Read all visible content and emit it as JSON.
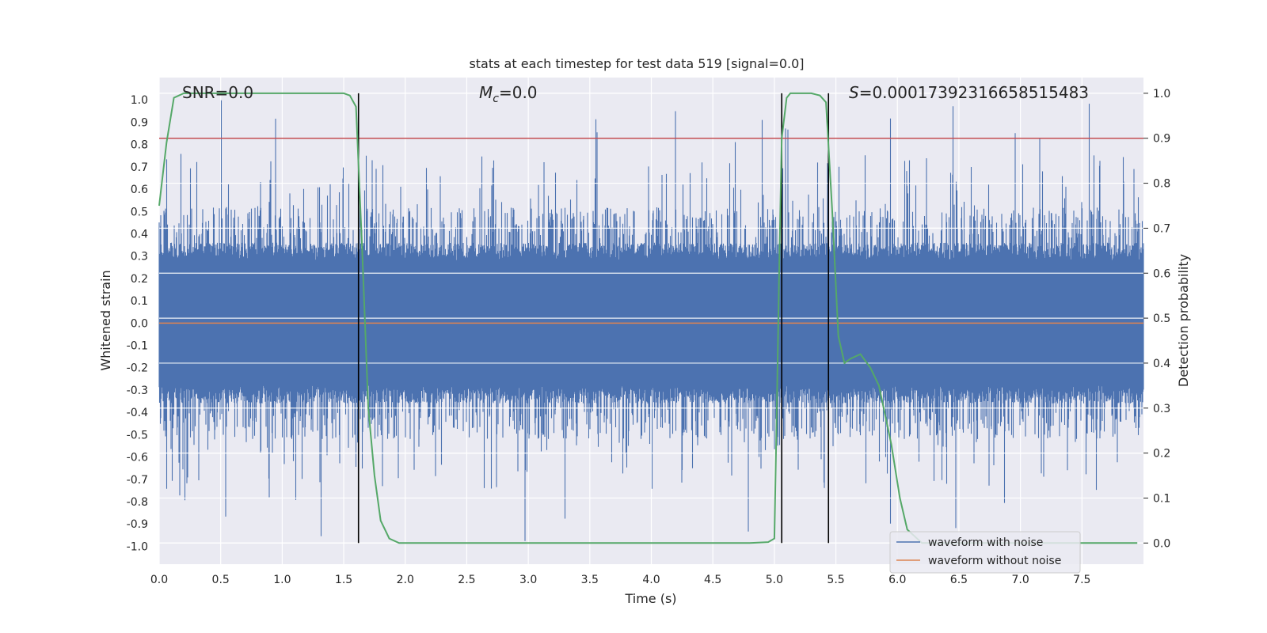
{
  "chart_data": {
    "type": "line",
    "title": "stats at each timestep for test data 519 [signal=0.0]",
    "xlabel": "Time (s)",
    "ylabel": "Whitened strain",
    "y2label": "Detection probability",
    "xlim": [
      0.0,
      8.0
    ],
    "ylim": [
      -1.08,
      1.1
    ],
    "y2lim": [
      -0.047,
      1.035
    ],
    "xticks": [
      "0.0",
      "0.5",
      "1.0",
      "1.5",
      "2.0",
      "2.5",
      "3.0",
      "3.5",
      "4.0",
      "4.5",
      "5.0",
      "5.5",
      "6.0",
      "6.5",
      "7.0",
      "7.5"
    ],
    "yticks": [
      "-1.0",
      "-0.9",
      "-0.8",
      "-0.7",
      "-0.6",
      "-0.5",
      "-0.4",
      "-0.3",
      "-0.2",
      "-0.1",
      "0.0",
      "0.1",
      "0.2",
      "0.3",
      "0.4",
      "0.5",
      "0.6",
      "0.7",
      "0.8",
      "0.9",
      "1.0"
    ],
    "y2ticks": [
      "0.0",
      "0.1",
      "0.2",
      "0.3",
      "0.4",
      "0.5",
      "0.6",
      "0.7",
      "0.8",
      "0.9",
      "1.0"
    ],
    "grid": true,
    "legend_position": "lower-right",
    "annotations": {
      "snr": "SNR=0.0",
      "mc_symbol": "M",
      "mc_sub": "c",
      "mc_value": "=0.0",
      "s_symbol": "S",
      "s_value": "=0.00017392316658515483"
    },
    "threshold": {
      "y2": 0.9,
      "color": "#c44e52"
    },
    "vertical_markers_x": [
      1.62,
      5.06,
      5.44
    ],
    "series": [
      {
        "name": "waveform with noise",
        "color": "#4c72b0",
        "axis": "left",
        "kind": "noise",
        "amplitude_envelope": [
          -0.98,
          1.0
        ]
      },
      {
        "name": "waveform without noise",
        "color": "#dd8452",
        "axis": "left",
        "kind": "flat",
        "value": 0.0
      },
      {
        "color": "#55a868",
        "axis": "right",
        "x": [
          0.0,
          0.06,
          0.12,
          0.2,
          0.3,
          0.5,
          0.8,
          1.0,
          1.2,
          1.4,
          1.5,
          1.55,
          1.6,
          1.65,
          1.7,
          1.75,
          1.8,
          1.87,
          1.95,
          2.0,
          2.5,
          3.0,
          3.5,
          4.0,
          4.5,
          4.8,
          4.95,
          5.0,
          5.02,
          5.04,
          5.06,
          5.1,
          5.13,
          5.2,
          5.3,
          5.37,
          5.42,
          5.47,
          5.52,
          5.57,
          5.62,
          5.7,
          5.78,
          5.85,
          5.95,
          6.02,
          6.08,
          6.2,
          6.5,
          7.0,
          7.5,
          7.95
        ],
        "y": [
          0.75,
          0.89,
          0.99,
          1.0,
          1.0,
          1.0,
          1.0,
          1.0,
          1.0,
          1.0,
          1.0,
          0.995,
          0.97,
          0.65,
          0.3,
          0.15,
          0.05,
          0.01,
          0.0,
          0.0,
          0.0,
          0.0,
          0.0,
          0.0,
          0.0,
          0.0,
          0.002,
          0.01,
          0.3,
          0.62,
          0.9,
          0.99,
          1.0,
          1.0,
          1.0,
          0.995,
          0.98,
          0.74,
          0.46,
          0.4,
          0.41,
          0.42,
          0.39,
          0.35,
          0.22,
          0.1,
          0.03,
          0.0,
          0.0,
          0.0,
          0.0,
          0.0
        ]
      }
    ]
  }
}
